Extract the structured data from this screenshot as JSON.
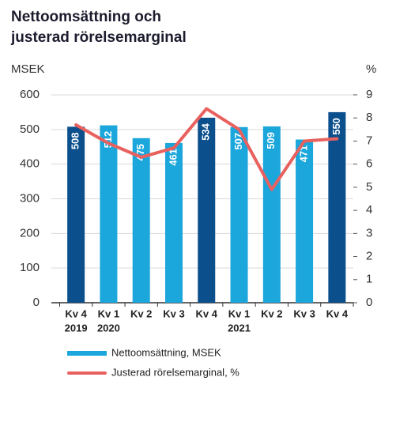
{
  "chart_data": {
    "type": "bar-line",
    "title_lines": [
      "Nettoomsättning och",
      "justerad rörelsemarginal"
    ],
    "y_label": "MSEK",
    "y2_label": "%",
    "categories": [
      "Kv 4",
      "Kv 1",
      "Kv 2",
      "Kv 3",
      "Kv 4",
      "Kv 1",
      "Kv 2",
      "Kv 3",
      "Kv 4"
    ],
    "category_groups": [
      "2019",
      "2020",
      null,
      null,
      null,
      "2021",
      null,
      null,
      null
    ],
    "series": [
      {
        "name": "Nettoomsättning, MSEK",
        "type": "bar",
        "color": "#1ba6dc",
        "colors": [
          "#0b4f8c",
          "#1ba6dc",
          "#1ba6dc",
          "#1ba6dc",
          "#0b4f8c",
          "#1ba6dc",
          "#1ba6dc",
          "#1ba6dc",
          "#0b4f8c"
        ],
        "values": [
          508,
          512,
          475,
          461,
          534,
          507,
          509,
          471,
          550
        ]
      },
      {
        "name": "Justerad rörelsemarginal, %",
        "type": "line",
        "axis": "y2",
        "color": "#e8615f",
        "values": [
          7.7,
          6.9,
          6.3,
          6.7,
          8.4,
          7.5,
          4.9,
          7.0,
          7.1
        ]
      }
    ],
    "ylim": [
      0,
      600
    ],
    "yticks": [
      0,
      100,
      200,
      300,
      400,
      500,
      600
    ],
    "y2lim": [
      0,
      9
    ],
    "y2ticks": [
      0,
      1,
      2,
      3,
      4,
      5,
      6,
      7,
      8,
      9
    ],
    "grid": true
  }
}
